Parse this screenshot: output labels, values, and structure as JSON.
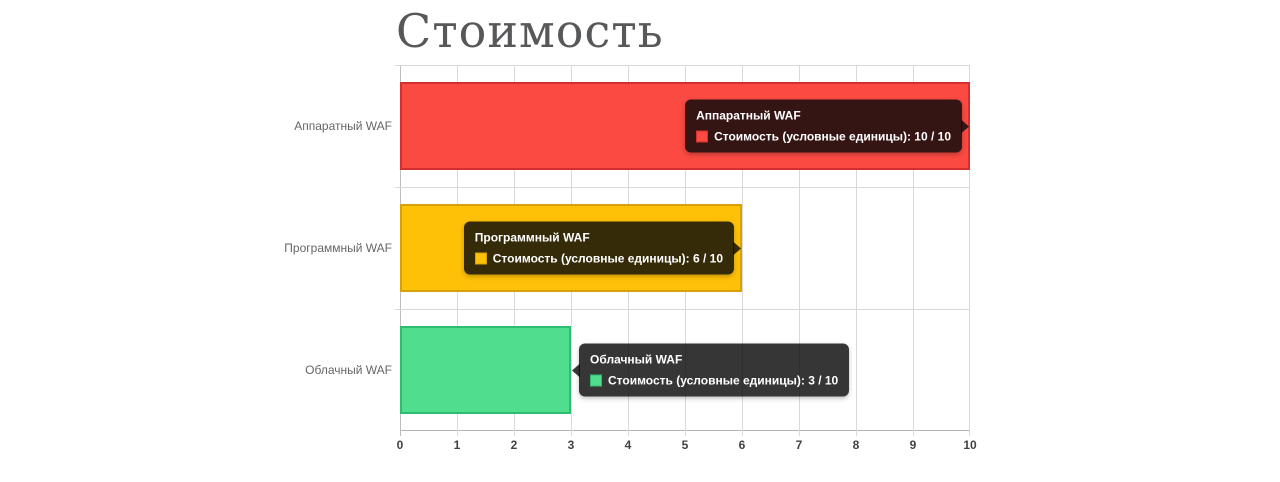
{
  "page": {
    "background": "#ffffff"
  },
  "chart_data": {
    "type": "bar",
    "orientation": "horizontal",
    "title": "Стоимость",
    "categories": [
      "Аппаратный WAF",
      "Программный WAF",
      "Облачный WAF"
    ],
    "series": [
      {
        "name": "Стоимость (условные единицы)",
        "values": [
          10,
          6,
          3
        ],
        "max": 10,
        "colors": [
          "#fa4a42",
          "#ffc107",
          "#50dd8d"
        ],
        "border_colors": [
          "#d32f2f",
          "#d4a106",
          "#2ebd70"
        ]
      }
    ],
    "xlim": [
      0,
      10
    ],
    "x_ticks": [
      "0",
      "1",
      "2",
      "3",
      "4",
      "5",
      "6",
      "7",
      "8",
      "9",
      "10"
    ],
    "grid": true,
    "legend": "none",
    "tooltip_background": "#0a0a0a",
    "tooltips": [
      {
        "title": "Аппаратный WAF",
        "label": "Стоимость (условные единицы): 10 / 10"
      },
      {
        "title": "Программный WAF",
        "label": "Стоимость (условные единицы): 6 / 10"
      },
      {
        "title": "Облачный WAF",
        "label": "Стоимость (условные единицы): 3 / 10"
      }
    ]
  }
}
